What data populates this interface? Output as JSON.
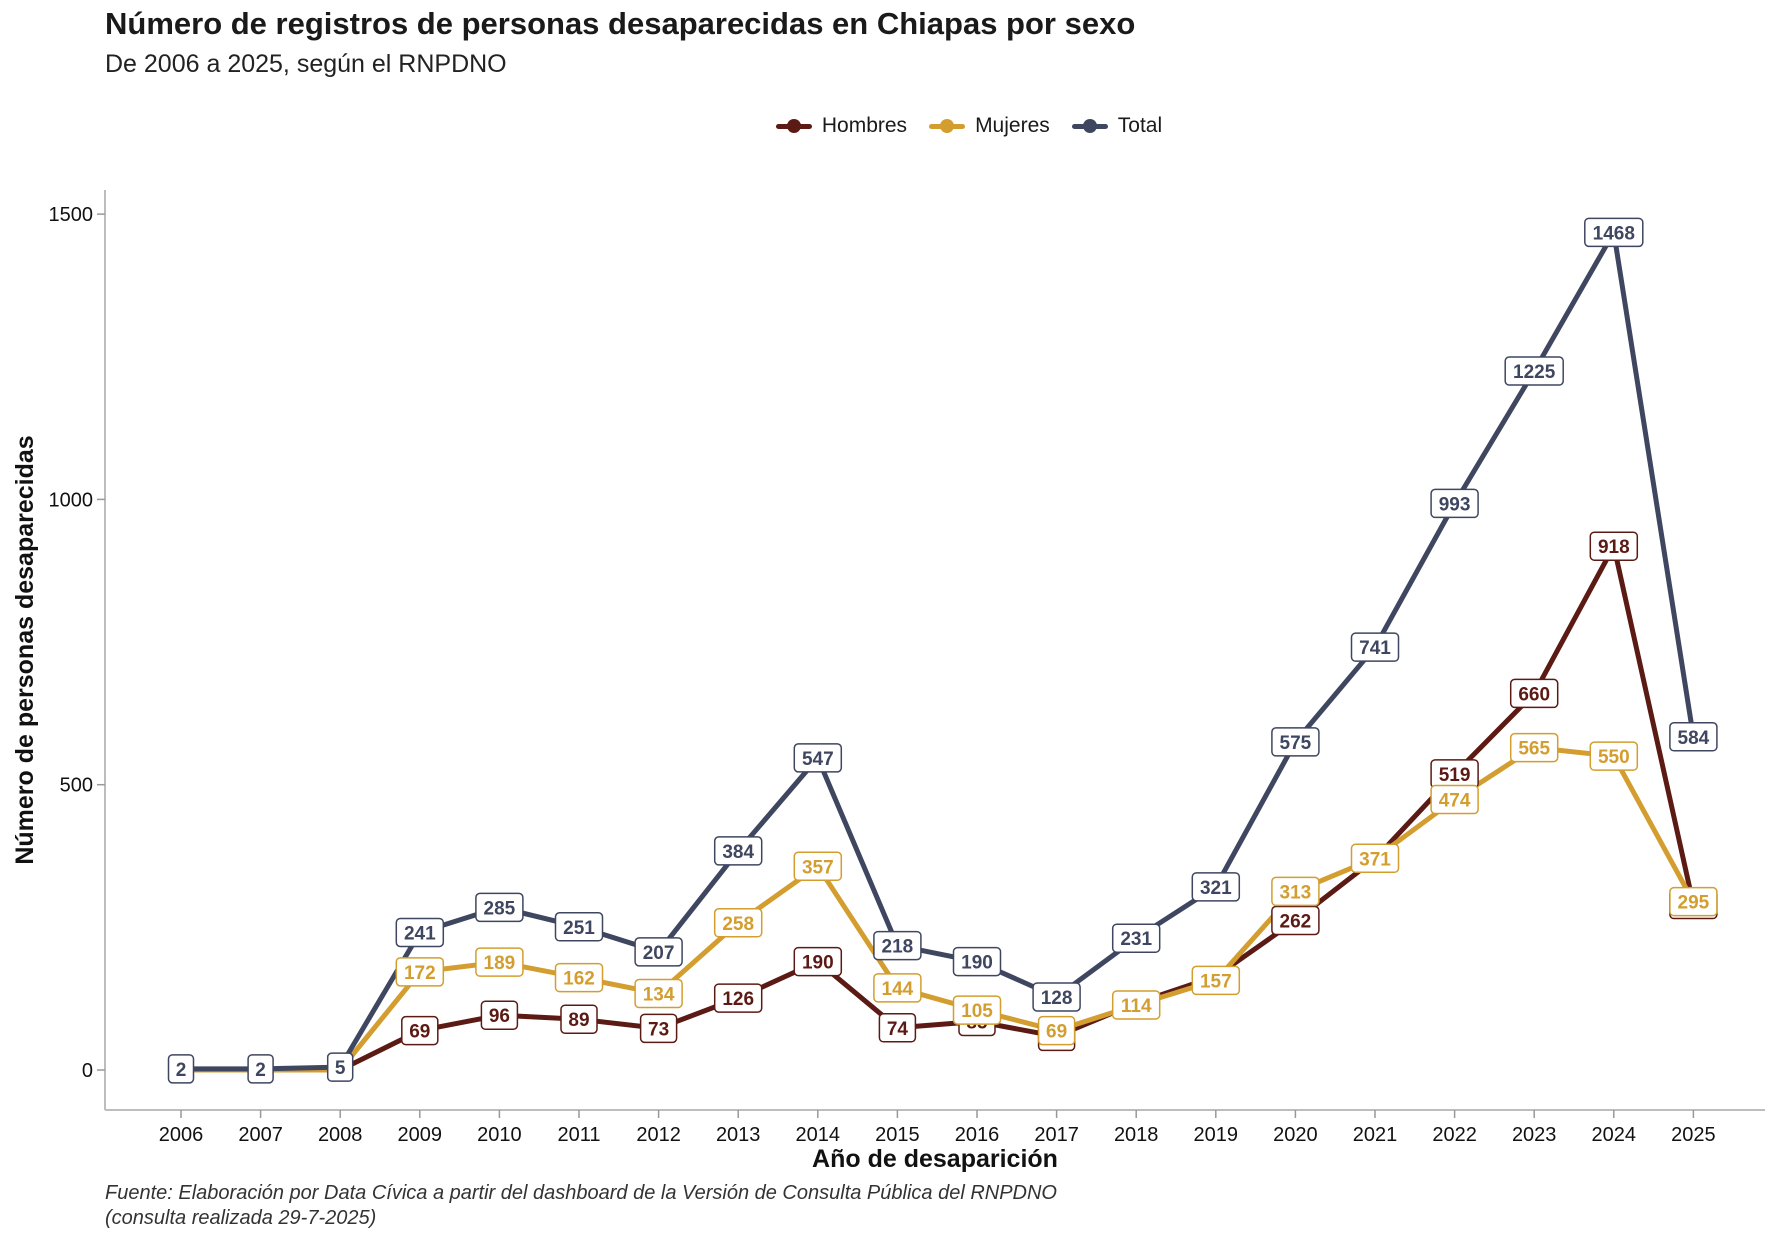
{
  "title": "Número de registros de personas desaparecidas en Chiapas por sexo",
  "subtitle": "De 2006 a 2025, según el RNPDNO",
  "caption_lines": [
    "Fuente: Elaboración por Data Cívica a partir del dashboard de la Versión de Consulta Pública del RNPDNO",
    "(consulta realizada 29-7-2025)"
  ],
  "chart_data": {
    "type": "line",
    "title": "Número de registros de personas desaparecidas en Chiapas por sexo",
    "subtitle": "De 2006 a 2025, según el RNPDNO",
    "xlabel": "Año de desaparición",
    "ylabel": "Número de personas desaparecidas",
    "x": [
      2006,
      2007,
      2008,
      2009,
      2010,
      2011,
      2012,
      2013,
      2014,
      2015,
      2016,
      2017,
      2018,
      2019,
      2020,
      2021,
      2022,
      2023,
      2024,
      2025
    ],
    "ylim": [
      -70,
      1550
    ],
    "yticks": [
      0,
      500,
      1000,
      1500
    ],
    "grid": false,
    "legend_position": "top",
    "series": [
      {
        "name": "Hombres",
        "color": "#5c1a14",
        "values": [
          0,
          0,
          0,
          69,
          96,
          89,
          73,
          126,
          190,
          74,
          85,
          59,
          117,
          164,
          262,
          370,
          519,
          660,
          918,
          290
        ],
        "labels": [
          null,
          null,
          null,
          "69",
          "96",
          "89",
          "73",
          "126",
          "190",
          "74",
          "85",
          "59",
          null,
          null,
          "262",
          null,
          "519",
          "660",
          "918",
          "290"
        ]
      },
      {
        "name": "Mujeres",
        "color": "#d39e2f",
        "values": [
          0,
          0,
          0,
          172,
          189,
          162,
          134,
          258,
          357,
          144,
          105,
          69,
          114,
          157,
          313,
          371,
          474,
          565,
          550,
          295
        ],
        "labels": [
          null,
          null,
          null,
          "172",
          "189",
          "162",
          "134",
          "258",
          "357",
          "144",
          "105",
          "69",
          "114",
          "157",
          "313",
          "371",
          "474",
          "565",
          "550",
          "295"
        ]
      },
      {
        "name": "Total",
        "color": "#3f4660",
        "values": [
          2,
          2,
          5,
          241,
          285,
          251,
          207,
          384,
          547,
          218,
          190,
          128,
          231,
          321,
          575,
          741,
          993,
          1225,
          1468,
          584
        ],
        "labels": [
          "2",
          "2",
          "5",
          "241",
          "285",
          "251",
          "207",
          "384",
          "547",
          "218",
          "190",
          "128",
          "231",
          "321",
          "575",
          "741",
          "993",
          "1225",
          "1468",
          "584"
        ]
      }
    ]
  }
}
